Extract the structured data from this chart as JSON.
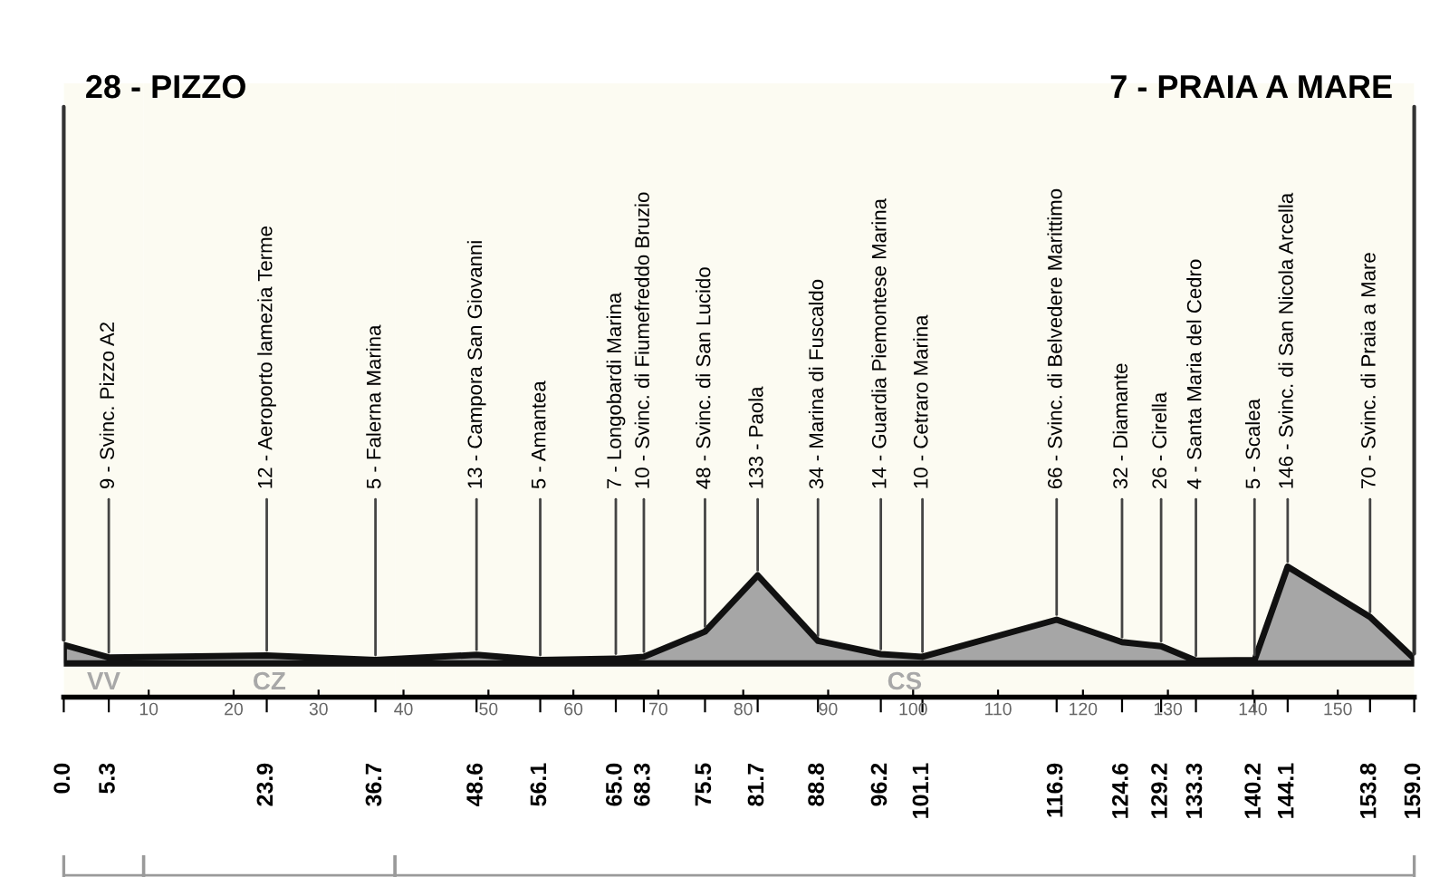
{
  "chart_data": {
    "type": "area",
    "x": [
      0.0,
      5.3,
      23.9,
      36.7,
      48.6,
      56.1,
      65.0,
      68.3,
      75.5,
      81.7,
      88.8,
      96.2,
      101.1,
      116.9,
      124.6,
      129.2,
      133.3,
      140.2,
      144.1,
      153.8,
      159.0
    ],
    "series": [
      {
        "color": "#a6a6a6",
        "values": [
          28,
          9,
          12,
          5,
          13,
          5,
          7,
          10,
          48,
          133,
          34,
          14,
          10,
          66,
          32,
          26,
          4,
          5,
          146,
          70,
          7
        ],
        "value_labels": [
          "28 - PIZZO",
          "9 - Svinc. Pizzo A2",
          "12 - Aeroporto lamezia Terme",
          "5 - Falerna Marina",
          "13 - Campora San Giovanni",
          "5 - Amantea",
          "7 - Longobardi Marina",
          "10 - Svinc. di Fiumefreddo Bruzio",
          "48 - Svinc. di San Lucido",
          "133 - Paola",
          "34 - Marina di Fuscaldo",
          "14 - Guardia Piemontese Marina",
          "10 - Cetraro Marina",
          "66 - Svinc. di Belvedere Marittimo",
          "32 - Diamante",
          "26 - Cirella",
          "4 - Santa Maria del Cedro",
          "5 - Scalea",
          "146 - Svinc. di San Nicola Arcella",
          "70 - Svinc. di Praia a Mare",
          "7 - PRAIA A MARE"
        ]
      }
    ],
    "xlim": [
      0,
      159
    ],
    "xticks": [
      {
        "value": 0,
        "label": "0.0"
      },
      {
        "value": 5.3,
        "label": "5.3"
      },
      {
        "value": 23.9,
        "label": "23.9"
      },
      {
        "value": 36.7,
        "label": "36.7"
      },
      {
        "value": 48.6,
        "label": "48.6"
      },
      {
        "value": 56.1,
        "label": "56.1"
      },
      {
        "value": 65.0,
        "label": "65.0"
      },
      {
        "value": 68.3,
        "label": "68.3"
      },
      {
        "value": 75.5,
        "label": "75.5"
      },
      {
        "value": 81.7,
        "label": "81.7"
      },
      {
        "value": 88.8,
        "label": "88.8"
      },
      {
        "value": 96.2,
        "label": "96.2"
      },
      {
        "value": 101.1,
        "label": "101.1"
      },
      {
        "value": 116.9,
        "label": "116.9"
      },
      {
        "value": 124.6,
        "label": "124.6"
      },
      {
        "value": 129.2,
        "label": "129.2"
      },
      {
        "value": 133.3,
        "label": "133.3"
      },
      {
        "value": 140.2,
        "label": "140.2"
      },
      {
        "value": 144.1,
        "label": "144.1"
      },
      {
        "value": 153.8,
        "label": "153.8"
      },
      {
        "value": 159.0,
        "label": "159.0"
      }
    ],
    "x2lim": [
      0,
      159
    ],
    "x2ticks": [
      10,
      20,
      30,
      40,
      50,
      60,
      70,
      80,
      90,
      100,
      110,
      120,
      130,
      140,
      150
    ],
    "bands": [
      {
        "axis": "x",
        "from": 0,
        "to": 9.4,
        "label": "VV",
        "color": "#fcfbf2"
      },
      {
        "axis": "x",
        "from": 9.4,
        "to": 39.0,
        "label": "CZ",
        "color": "#fcfbf2"
      },
      {
        "axis": "x",
        "from": 39.0,
        "to": 159,
        "label": "CS",
        "color": "#fcfbf2"
      }
    ]
  }
}
